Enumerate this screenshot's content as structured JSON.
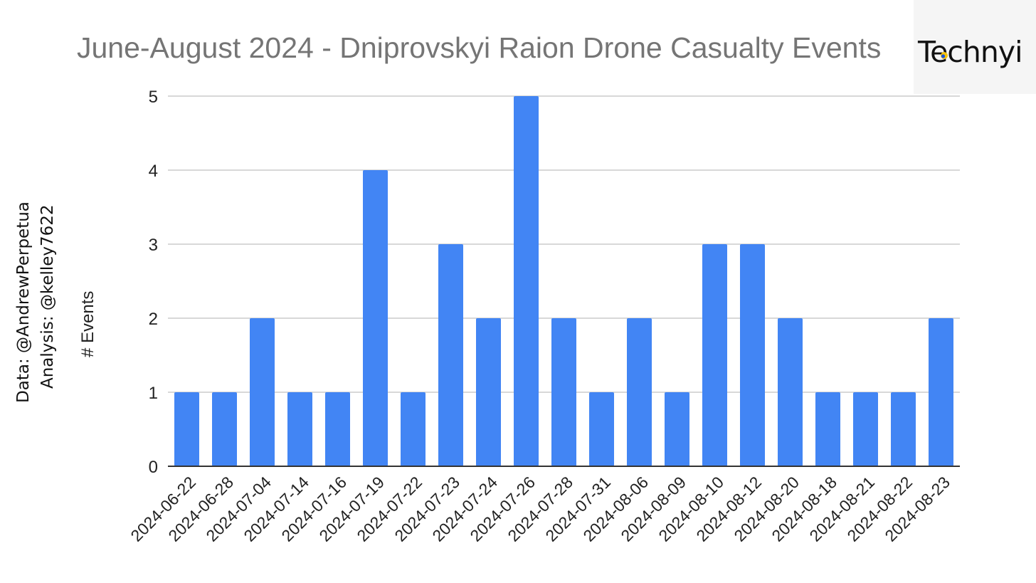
{
  "credits": {
    "data": "Data: @AndrewPerpetua",
    "analysis": "Analysis: @kelley7622"
  },
  "logo": {
    "text": "Technyi"
  },
  "colors": {
    "bar": "#4285f4",
    "grid": "#cccccc",
    "axis": "#333333",
    "title": "#757575"
  },
  "chart_data": {
    "type": "bar",
    "title": "June-August 2024 - Dniprovskyi Raion Drone Casualty Events",
    "xlabel": "",
    "ylabel": "# Events",
    "ylim": [
      0,
      5
    ],
    "yticks": [
      0,
      1,
      2,
      3,
      4,
      5
    ],
    "grid": true,
    "legend": "none",
    "categories": [
      "2024-06-22",
      "2024-06-28",
      "2024-07-04",
      "2024-07-14",
      "2024-07-16",
      "2024-07-19",
      "2024-07-22",
      "2024-07-23",
      "2024-07-24",
      "2024-07-26",
      "2024-07-28",
      "2024-07-31",
      "2024-08-06",
      "2024-08-09",
      "2024-08-10",
      "2024-08-12",
      "2024-08-20",
      "2024-08-18",
      "2024-08-21",
      "2024-08-22",
      "2024-08-23"
    ],
    "values": [
      1,
      1,
      2,
      1,
      1,
      4,
      1,
      3,
      2,
      5,
      2,
      1,
      2,
      1,
      3,
      3,
      2,
      1,
      1,
      1,
      2
    ]
  }
}
